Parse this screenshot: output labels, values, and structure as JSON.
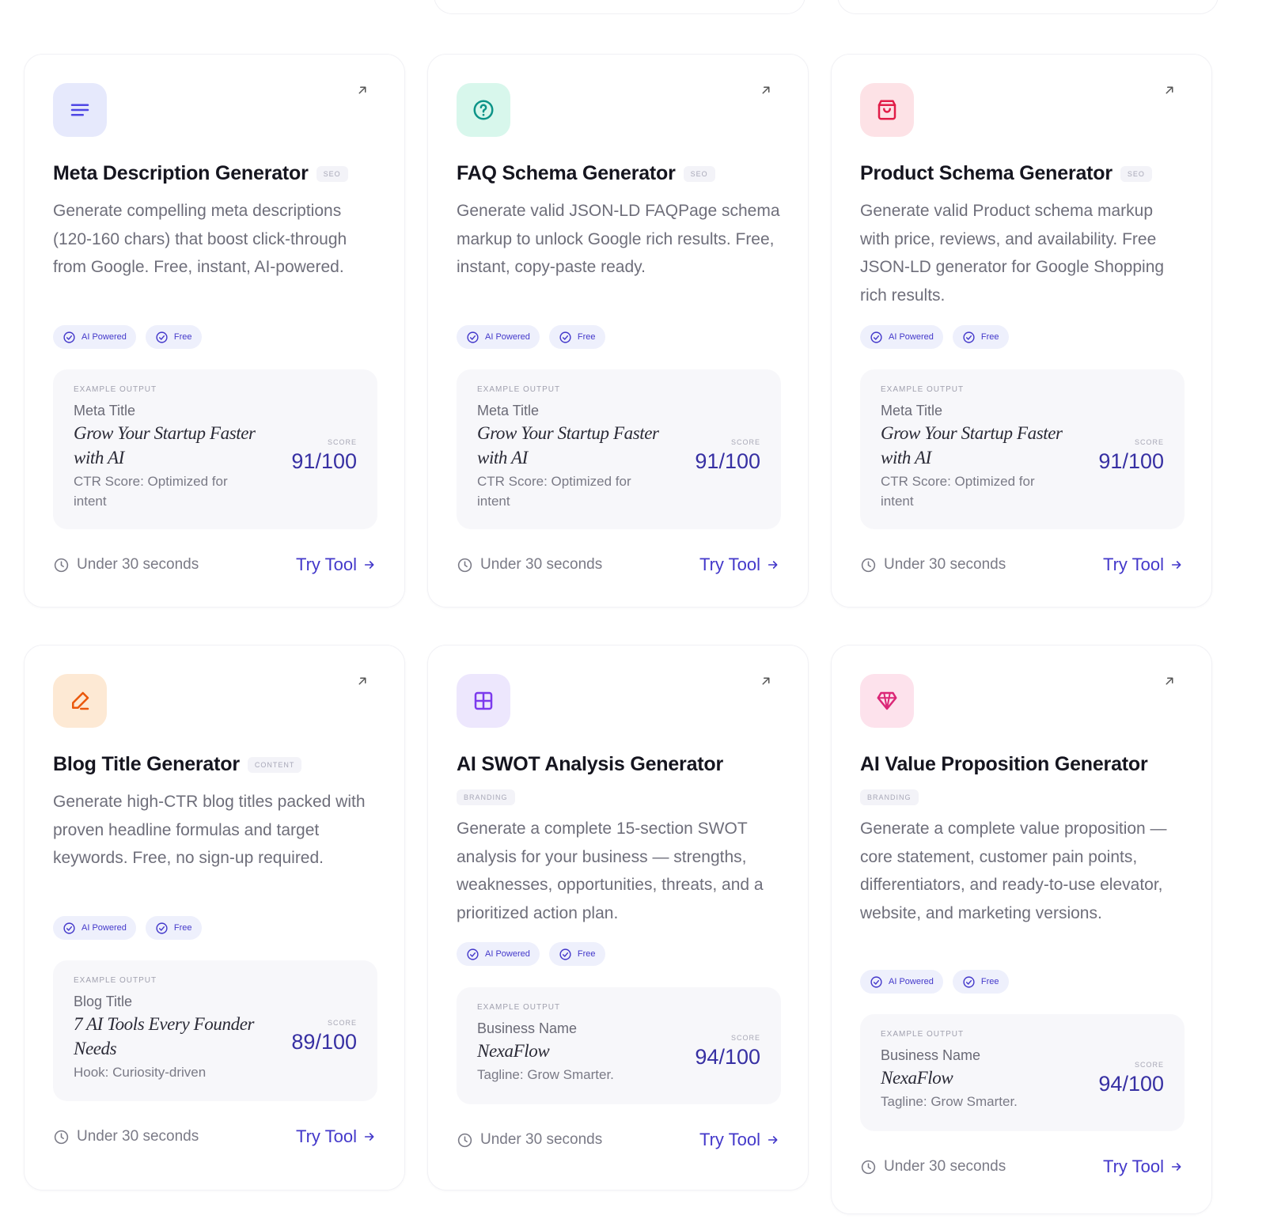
{
  "example_label": "EXAMPLE OUTPUT",
  "score_label": "SCORE",
  "footer": {
    "time": "Under 30 seconds",
    "cta": "Try Tool"
  },
  "tags": {
    "ai": "AI Powered",
    "free": "Free"
  },
  "colors": {
    "accent": "#4338ca",
    "score": "#3730a3",
    "text_muted": "#6e6e7a"
  },
  "cards": [
    {
      "icon": "lines-icon",
      "title": "Meta Description Generator",
      "category": "SEO",
      "description": "Generate compelling meta descriptions (120-160 chars) that boost click-through from Google. Free, instant, AI-powered.",
      "example": {
        "field": "Meta Title",
        "value": "Grow Your Startup Faster with AI",
        "note": "CTR Score: Optimized for intent",
        "score": "91/100"
      }
    },
    {
      "icon": "help-circle-icon",
      "title": "FAQ Schema Generator",
      "category": "SEO",
      "description": "Generate valid JSON-LD FAQPage schema markup to unlock Google rich results. Free, instant, copy-paste ready.",
      "example": {
        "field": "Meta Title",
        "value": "Grow Your Startup Faster with AI",
        "note": "CTR Score: Optimized for intent",
        "score": "91/100"
      }
    },
    {
      "icon": "shopping-bag-icon",
      "title": "Product Schema Generator",
      "category": "SEO",
      "description": "Generate valid Product schema markup with price, reviews, and availability. Free JSON-LD generator for Google Shopping rich results.",
      "example": {
        "field": "Meta Title",
        "value": "Grow Your Startup Faster with AI",
        "note": "CTR Score: Optimized for intent",
        "score": "91/100"
      }
    },
    {
      "icon": "pen-icon",
      "title": "Blog Title Generator",
      "category": "CONTENT",
      "description": "Generate high-CTR blog titles packed with proven headline formulas and target keywords. Free, no sign-up required.",
      "example": {
        "field": "Blog Title",
        "value": "7 AI Tools Every Founder Needs",
        "note": "Hook: Curiosity-driven",
        "score": "89/100"
      }
    },
    {
      "icon": "grid-icon",
      "title": "AI SWOT Analysis Generator",
      "category": "BRANDING",
      "description": "Generate a complete 15-section SWOT analysis for your business — strengths, weaknesses, opportunities, threats, and a prioritized action plan.",
      "example": {
        "field": "Business Name",
        "value": "NexaFlow",
        "note": "Tagline: Grow Smarter.",
        "score": "94/100"
      }
    },
    {
      "icon": "gem-icon",
      "title": "AI Value Proposition Generator",
      "category": "BRANDING",
      "description": "Generate a complete value proposition — core statement, customer pain points, differentiators, and ready-to-use elevator, website, and marketing versions.",
      "example": {
        "field": "Business Name",
        "value": "NexaFlow",
        "note": "Tagline: Grow Smarter.",
        "score": "94/100"
      }
    }
  ]
}
